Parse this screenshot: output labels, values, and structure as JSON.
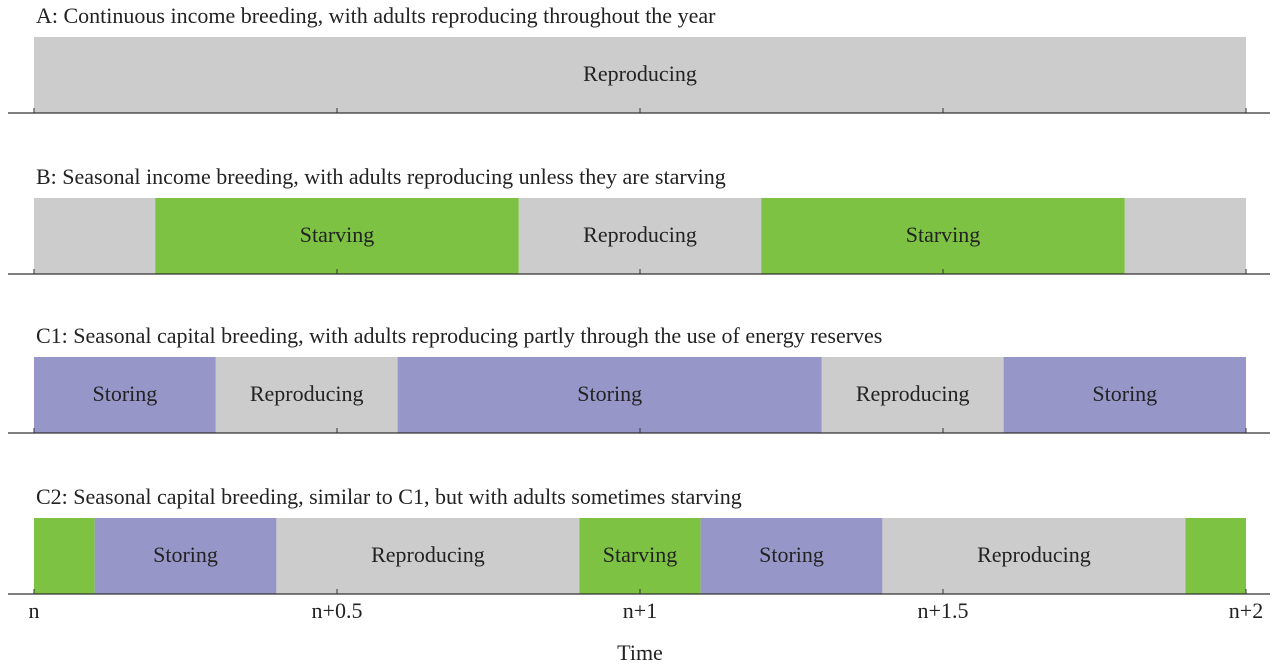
{
  "chart_data": [
    {
      "type": "timeline",
      "title": "A: Continuous income breeding, with adults reproducing throughout the year",
      "xlim": [
        0,
        2
      ],
      "segments": [
        {
          "label": "Reproducing",
          "start": 0,
          "end": 2,
          "color": "#cccccc"
        }
      ]
    },
    {
      "type": "timeline",
      "title": "B: Seasonal income breeding, with adults reproducing unless they are starving",
      "xlim": [
        0,
        2
      ],
      "segments": [
        {
          "label": null,
          "start": 0,
          "end": 0.2,
          "color": "#cccccc"
        },
        {
          "label": "Starving",
          "start": 0.2,
          "end": 0.8,
          "color": "#7dc242"
        },
        {
          "label": "Reproducing",
          "start": 0.8,
          "end": 1.2,
          "color": "#cccccc"
        },
        {
          "label": "Starving",
          "start": 1.2,
          "end": 1.8,
          "color": "#7dc242"
        },
        {
          "label": null,
          "start": 1.8,
          "end": 2,
          "color": "#cccccc"
        }
      ]
    },
    {
      "type": "timeline",
      "title": "C1: Seasonal capital breeding, with adults reproducing partly through the use of energy reserves",
      "xlim": [
        0,
        2
      ],
      "segments": [
        {
          "label": "Storing",
          "start": 0,
          "end": 0.3,
          "color": "#9696c8"
        },
        {
          "label": "Reproducing",
          "start": 0.3,
          "end": 0.6,
          "color": "#cccccc"
        },
        {
          "label": "Storing",
          "start": 0.6,
          "end": 1.3,
          "color": "#9696c8"
        },
        {
          "label": "Reproducing",
          "start": 1.3,
          "end": 1.6,
          "color": "#cccccc"
        },
        {
          "label": "Storing",
          "start": 1.6,
          "end": 2,
          "color": "#9696c8"
        }
      ]
    },
    {
      "type": "timeline",
      "title": "C2: Seasonal capital breeding, similar to C1, but with adults sometimes starving",
      "xlim": [
        0,
        2
      ],
      "segments": [
        {
          "label": null,
          "start": 0,
          "end": 0.1,
          "color": "#7dc242"
        },
        {
          "label": "Storing",
          "start": 0.1,
          "end": 0.4,
          "color": "#9696c8"
        },
        {
          "label": "Reproducing",
          "start": 0.4,
          "end": 0.9,
          "color": "#cccccc"
        },
        {
          "label": "Starving",
          "start": 0.9,
          "end": 1.1,
          "color": "#7dc242"
        },
        {
          "label": "Storing",
          "start": 1.1,
          "end": 1.4,
          "color": "#9696c8"
        },
        {
          "label": "Reproducing",
          "start": 1.4,
          "end": 1.9,
          "color": "#cccccc"
        },
        {
          "label": null,
          "start": 1.9,
          "end": 2,
          "color": "#7dc242"
        }
      ],
      "xticks": [
        {
          "value": 0,
          "label": "n"
        },
        {
          "value": 0.5,
          "label": "n+0.5"
        },
        {
          "value": 1,
          "label": "n+1"
        },
        {
          "value": 1.5,
          "label": "n+1.5"
        },
        {
          "value": 2,
          "label": "n+2"
        }
      ],
      "xlabel": "Time"
    }
  ]
}
